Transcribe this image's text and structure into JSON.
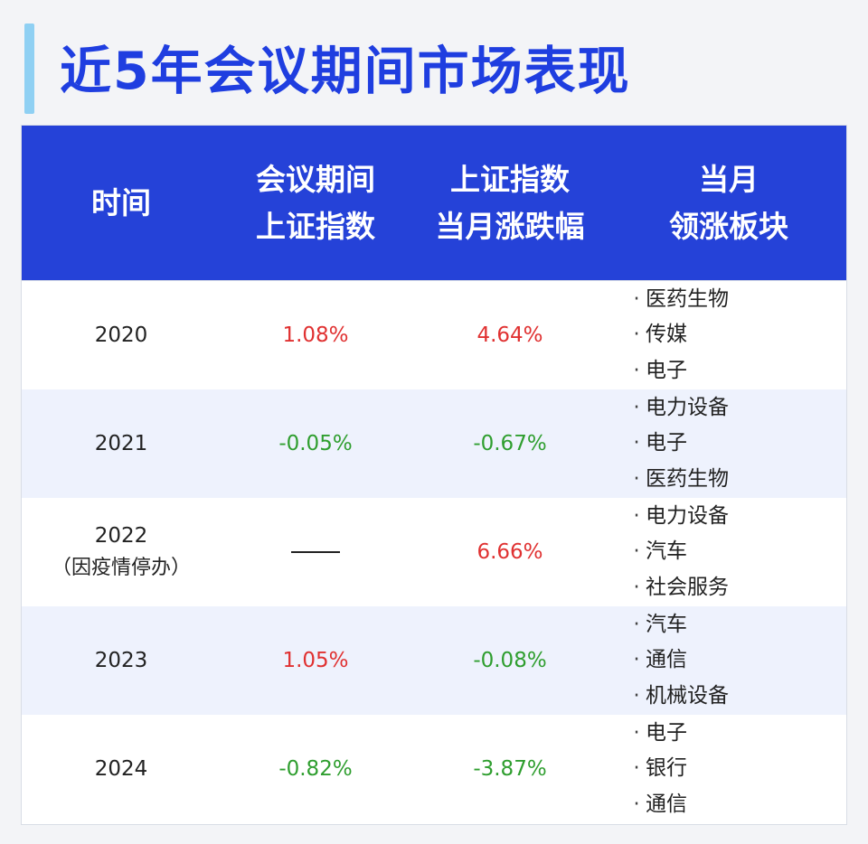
{
  "title": "近5年会议期间市场表现",
  "colors": {
    "title": "#1f3ee0",
    "header_bg": "#2542d8",
    "accent_bar": "#8fd0f3",
    "up": "#e03131",
    "down": "#2f9e2f",
    "stripe": "#eef2fd"
  },
  "headers": [
    [
      "时间"
    ],
    [
      "会议期间",
      "上证指数"
    ],
    [
      "上证指数",
      "当月涨跌幅"
    ],
    [
      "当月",
      "领涨板块"
    ]
  ],
  "bullet": "·",
  "rows": [
    {
      "year": "2020",
      "note": "",
      "meeting_change": "1.08%",
      "meeting_dir": "up",
      "month_change": "4.64%",
      "month_dir": "up",
      "sectors": [
        "医药生物",
        "传媒",
        "电子"
      ]
    },
    {
      "year": "2021",
      "note": "",
      "meeting_change": "-0.05%",
      "meeting_dir": "down",
      "month_change": "-0.67%",
      "month_dir": "down",
      "sectors": [
        "电力设备",
        "电子",
        "医药生物"
      ]
    },
    {
      "year": "2022",
      "note": "（因疫情停办）",
      "meeting_change": "",
      "meeting_dir": "none",
      "month_change": "6.66%",
      "month_dir": "up",
      "sectors": [
        "电力设备",
        "汽车",
        "社会服务"
      ]
    },
    {
      "year": "2023",
      "note": "",
      "meeting_change": "1.05%",
      "meeting_dir": "up",
      "month_change": "-0.08%",
      "month_dir": "down",
      "sectors": [
        "汽车",
        "通信",
        "机械设备"
      ]
    },
    {
      "year": "2024",
      "note": "",
      "meeting_change": "-0.82%",
      "meeting_dir": "down",
      "month_change": "-3.87%",
      "month_dir": "down",
      "sectors": [
        "电子",
        "银行",
        "通信"
      ]
    }
  ]
}
